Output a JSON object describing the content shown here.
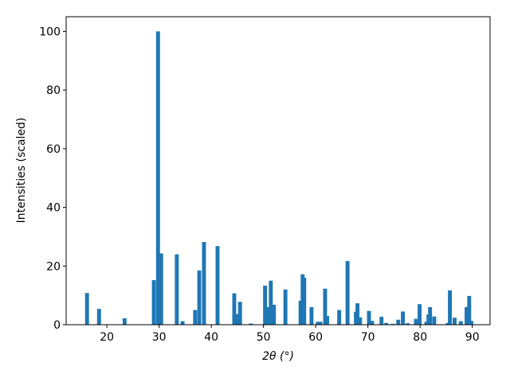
{
  "chart_data": {
    "type": "bar",
    "xlabel": "2θ (°)",
    "ylabel": "Intensities (scaled)",
    "color": "#1f77b4",
    "x": [
      16.2,
      18.5,
      23.4,
      29.0,
      29.8,
      30.4,
      33.4,
      34.5,
      36.9,
      37.7,
      38.6,
      41.2,
      44.4,
      44.9,
      45.5,
      47.6,
      50.3,
      51.0,
      51.4,
      52.0,
      54.2,
      57.1,
      57.5,
      57.8,
      59.2,
      60.4,
      60.9,
      61.8,
      62.2,
      64.5,
      66.1,
      67.7,
      68.0,
      68.5,
      70.2,
      70.8,
      72.6,
      73.5,
      74.8,
      75.8,
      76.7,
      77.6,
      79.2,
      79.9,
      81.2,
      81.6,
      81.9,
      82.7,
      85.3,
      85.7,
      86.6,
      87.8,
      88.9,
      89.4,
      89.8
    ],
    "values": [
      10.8,
      5.4,
      2.2,
      15.2,
      100,
      24.3,
      24,
      1.2,
      5,
      18.5,
      28.2,
      26.8,
      10.7,
      3.6,
      7.8,
      0.4,
      13.3,
      6,
      15,
      6.8,
      12,
      8.2,
      17.2,
      16,
      6,
      1,
      1,
      12.3,
      3,
      5,
      21.7,
      4.4,
      7.3,
      2.5,
      4.7,
      1.3,
      2.7,
      0.6,
      0.3,
      1.7,
      4.5,
      0.5,
      2,
      7,
      1,
      3.5,
      6,
      2.8,
      0.6,
      11.7,
      2.4,
      1.2,
      6,
      9.8,
      1.3
    ],
    "xlim": [
      12.2,
      93.4
    ],
    "ylim": [
      0,
      105
    ],
    "xticks": [
      20,
      30,
      40,
      50,
      60,
      70,
      80,
      90
    ],
    "yticks": [
      0,
      20,
      40,
      60,
      80,
      100
    ]
  }
}
